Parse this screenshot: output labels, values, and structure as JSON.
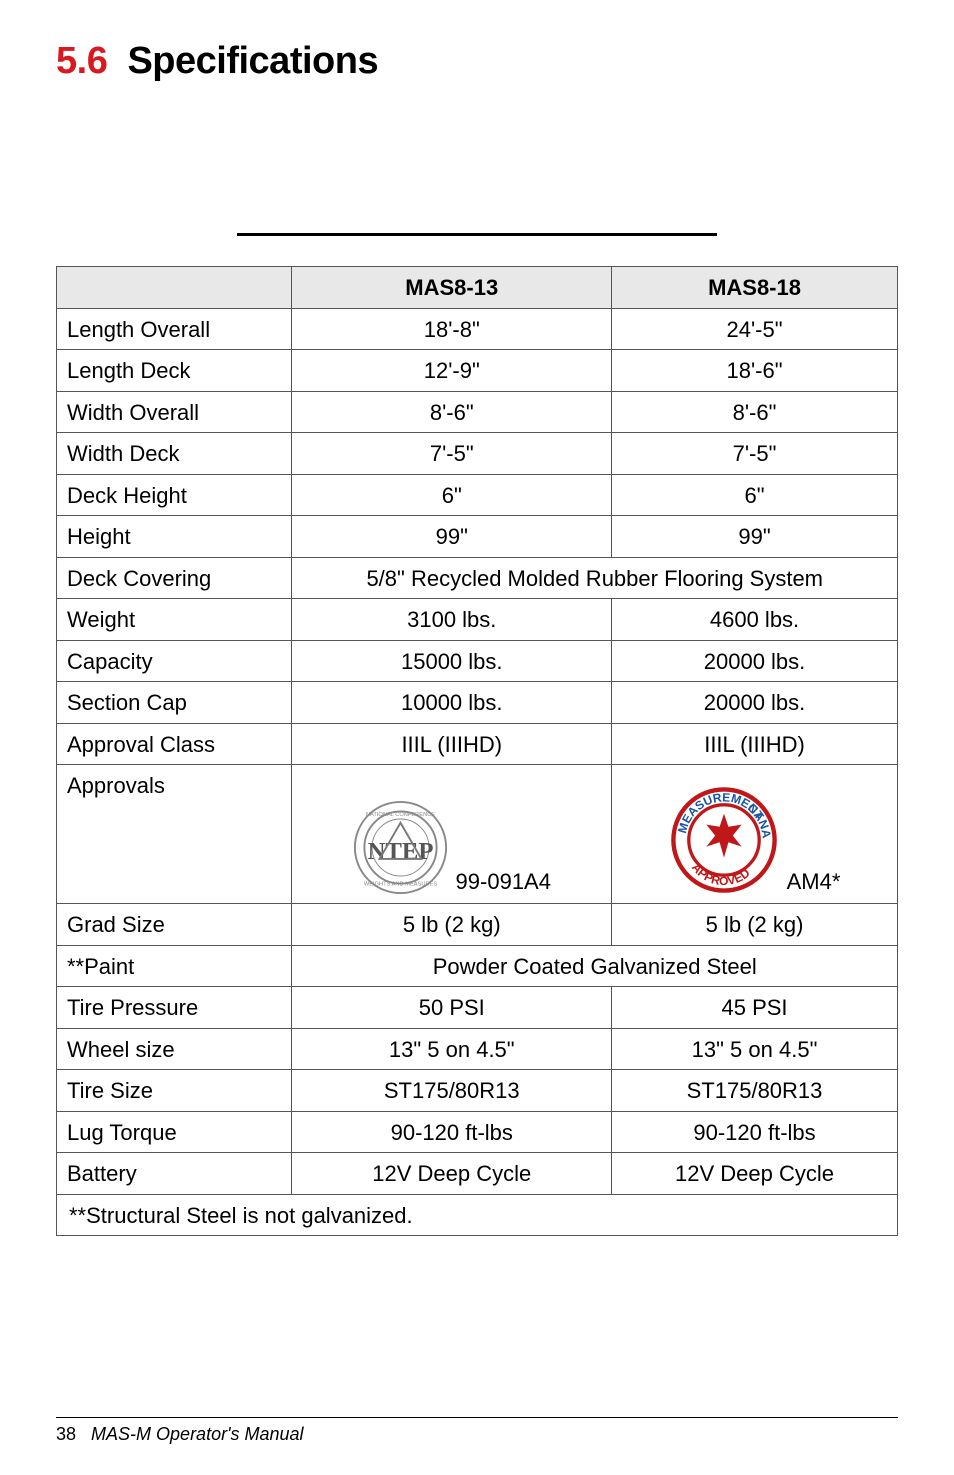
{
  "title": {
    "number": "5.6",
    "text": "Specifications"
  },
  "table": {
    "header": {
      "blank": "",
      "col1": "MAS8-13",
      "col2": "MAS8-18"
    },
    "rows": [
      {
        "label": "Length Overall",
        "v1": "18'-8\"",
        "v2": "24'-5\""
      },
      {
        "label": "Length Deck",
        "v1": "12'-9\"",
        "v2": "18'-6\""
      },
      {
        "label": "Width Overall",
        "v1": "8'-6\"",
        "v2": "8'-6\""
      },
      {
        "label": "Width Deck",
        "v1": "7'-5\"",
        "v2": "7'-5\""
      },
      {
        "label": "Deck Height",
        "v1": "6\"",
        "v2": "6\""
      },
      {
        "label": "Height",
        "v1": "99\"",
        "v2": "99\""
      },
      {
        "label": "Deck Covering",
        "span": "5/8\" Recycled Molded Rubber Flooring System"
      },
      {
        "label": "Weight",
        "v1": "3100 lbs.",
        "v2": "4600 lbs."
      },
      {
        "label": "Capacity",
        "v1": "15000 lbs.",
        "v2": "20000 lbs."
      },
      {
        "label": "Section Cap",
        "v1": "10000 lbs.",
        "v2": "20000 lbs."
      },
      {
        "label": "Approval Class",
        "v1": "IIIL (IIIHD)",
        "v2": "IIIL (IIIHD)"
      },
      {
        "label": "Approvals",
        "approvals": true,
        "seal1_caption": "99-091A4",
        "seal2_caption": "AM4*"
      },
      {
        "label": "Grad Size",
        "v1": "5 lb (2 kg)",
        "v2": "5 lb (2 kg)"
      },
      {
        "label": "**Paint",
        "span": "Powder Coated Galvanized Steel"
      },
      {
        "label": "Tire Pressure",
        "v1": "50 PSI",
        "v2": "45 PSI"
      },
      {
        "label": "Wheel size",
        "v1": "13\" 5 on 4.5\"",
        "v2": "13\" 5 on 4.5\""
      },
      {
        "label": "Tire Size",
        "v1": "ST175/80R13",
        "v2": "ST175/80R13"
      },
      {
        "label": "Lug Torque",
        "v1": "90-120 ft-lbs",
        "v2": "90-120 ft-lbs"
      },
      {
        "label": "Battery",
        "v1": "12V Deep Cycle",
        "v2": "12V Deep Cycle"
      }
    ],
    "footnote": "**Structural Steel is not galvanized."
  },
  "footer": {
    "page": "38",
    "title": "MAS-M Operator's Manual"
  },
  "style": {
    "accent_red": "#d71920",
    "header_bg": "#e8e8e8",
    "border_color": "#555555"
  }
}
